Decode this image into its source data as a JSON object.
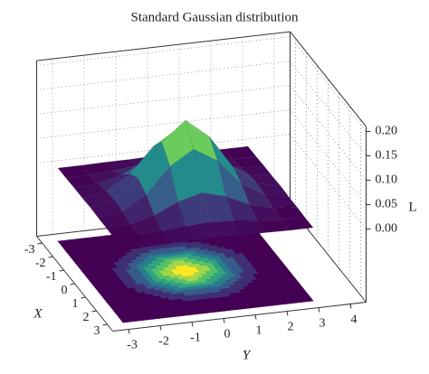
{
  "chart_data": {
    "type": "surface",
    "title": "Standard Gaussian distribution",
    "xlabel": "X",
    "ylabel": "Y",
    "zlabel": "L",
    "x": [
      -3,
      -2.25,
      -1.5,
      -0.75,
      0,
      0.75,
      1.5,
      2.25,
      3
    ],
    "y": [
      -3,
      -2.25,
      -1.5,
      -0.75,
      0,
      0.75,
      1.5,
      2.25,
      3
    ],
    "z": [
      [
        0,
        0,
        0.001,
        0.001,
        0.002,
        0.001,
        0.001,
        0,
        0
      ],
      [
        0,
        0.001,
        0.004,
        0.01,
        0.013,
        0.01,
        0.004,
        0.001,
        0
      ],
      [
        0.001,
        0.004,
        0.017,
        0.039,
        0.052,
        0.039,
        0.017,
        0.004,
        0.001
      ],
      [
        0.001,
        0.01,
        0.039,
        0.091,
        0.12,
        0.091,
        0.039,
        0.01,
        0.001
      ],
      [
        0.002,
        0.013,
        0.052,
        0.12,
        0.159,
        0.12,
        0.052,
        0.013,
        0.002
      ],
      [
        0.001,
        0.01,
        0.039,
        0.091,
        0.12,
        0.091,
        0.039,
        0.01,
        0.001
      ],
      [
        0.001,
        0.004,
        0.017,
        0.039,
        0.052,
        0.039,
        0.017,
        0.004,
        0.001
      ],
      [
        0,
        0.001,
        0.004,
        0.01,
        0.013,
        0.01,
        0.004,
        0.001,
        0
      ],
      [
        0,
        0,
        0.001,
        0.001,
        0.002,
        0.001,
        0.001,
        0,
        0
      ]
    ],
    "xlim": [
      -3.5,
      3.5
    ],
    "ylim": [
      -3.5,
      4.5
    ],
    "zlim": [
      -0.15,
      0.21
    ],
    "xticks": [
      -3,
      -2,
      -1,
      0,
      1,
      2,
      3
    ],
    "yticks": [
      -3,
      -2,
      -1,
      0,
      1,
      2,
      3,
      4
    ],
    "zticks": [
      {
        "value": 0,
        "label": "0.00"
      },
      {
        "value": 0.05,
        "label": "0.05"
      },
      {
        "value": 0.1,
        "label": "0.10"
      },
      {
        "value": 0.15,
        "label": "0.15"
      },
      {
        "value": 0.2,
        "label": "0.20"
      }
    ],
    "colormap": "viridis",
    "contour_projection": true,
    "grid": true
  }
}
